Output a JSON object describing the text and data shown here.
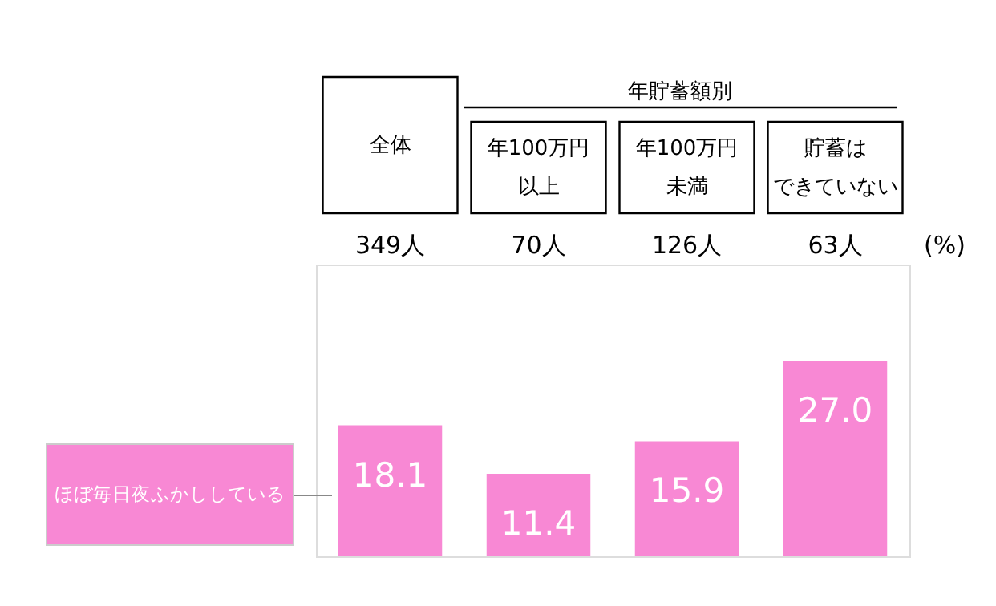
{
  "chart_data": {
    "type": "bar",
    "categories": [
      "全体",
      "年100万円以上",
      "年100万円未満",
      "貯蓄はできていない"
    ],
    "series": [
      {
        "name": "ほぼ毎日夜ふかししている",
        "color": "#f888d4",
        "values": [
          18.1,
          11.4,
          15.9,
          27.0
        ],
        "value_labels": [
          "18.1",
          "11.4",
          "15.9",
          "27.0"
        ]
      }
    ],
    "tick_labels": false,
    "annotations": [
      "年貯蓄額別",
      "(%)",
      "349人",
      "70人",
      "126人",
      "63人"
    ]
  }
}
